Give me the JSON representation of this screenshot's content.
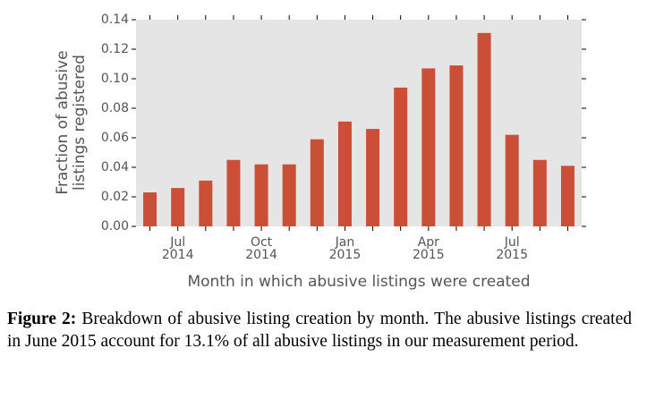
{
  "chart_data": {
    "type": "bar",
    "y_label": "Fraction of abusive\nlistings registered",
    "x_label": "Month in which abusive listings were created",
    "categories": [
      null,
      "Jul\n2014",
      null,
      null,
      "Oct\n2014",
      null,
      null,
      "Jan\n2015",
      null,
      null,
      "Apr\n2015",
      null,
      null,
      "Jul\n2015",
      null,
      null
    ],
    "values": [
      0.023,
      0.026,
      0.031,
      0.045,
      0.042,
      0.042,
      0.059,
      0.071,
      0.066,
      0.094,
      0.107,
      0.109,
      0.131,
      0.062,
      0.045,
      0.041
    ],
    "color": "#cb4e37",
    "ylim": [
      0,
      0.14
    ],
    "yticks": [
      {
        "value": 0,
        "label": "0.00"
      },
      {
        "value": 0.02,
        "label": "0.02"
      },
      {
        "value": 0.04,
        "label": "0.04"
      },
      {
        "value": 0.06,
        "label": "0.06"
      },
      {
        "value": 0.08,
        "label": "0.08"
      },
      {
        "value": 0.1,
        "label": "0.10"
      },
      {
        "value": 0.12,
        "label": "0.12"
      },
      {
        "value": 0.14,
        "label": "0.14"
      }
    ],
    "grid": false
  },
  "caption": {
    "label": "Figure 2:",
    "text": "Breakdown of abusive listing creation by month. The abusive listings created in June 2015 account for 13.1% of all abusive listings in our measurement period."
  }
}
